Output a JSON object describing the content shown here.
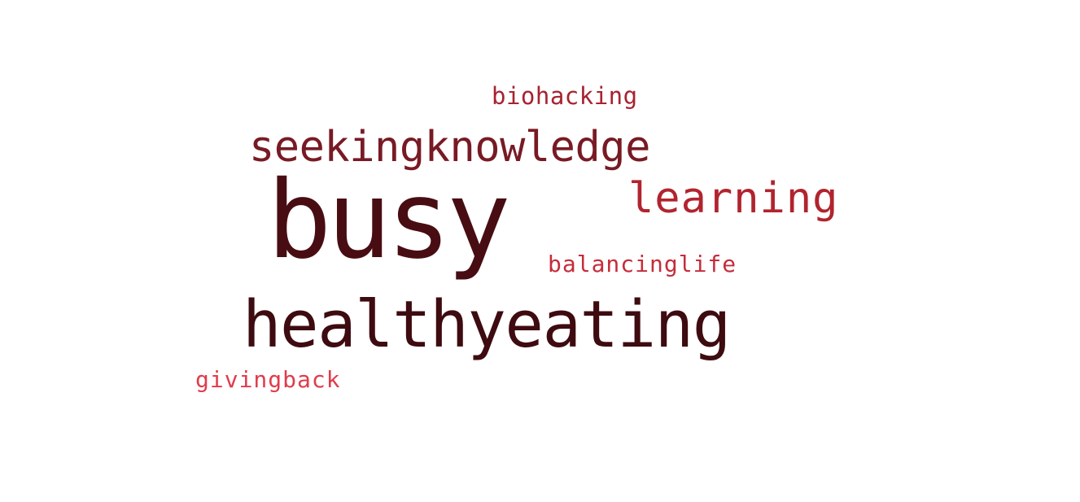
{
  "word_cloud": {
    "words": [
      {
        "text": "busy",
        "color": "#480d12"
      },
      {
        "text": "healthyeating",
        "color": "#3e0b10"
      },
      {
        "text": "seekingknowledge",
        "color": "#781a24"
      },
      {
        "text": "learning",
        "color": "#b1242e"
      },
      {
        "text": "biohacking",
        "color": "#a72330"
      },
      {
        "text": "balancinglife",
        "color": "#c62c3b"
      },
      {
        "text": "givingback",
        "color": "#e03c4c"
      }
    ]
  }
}
